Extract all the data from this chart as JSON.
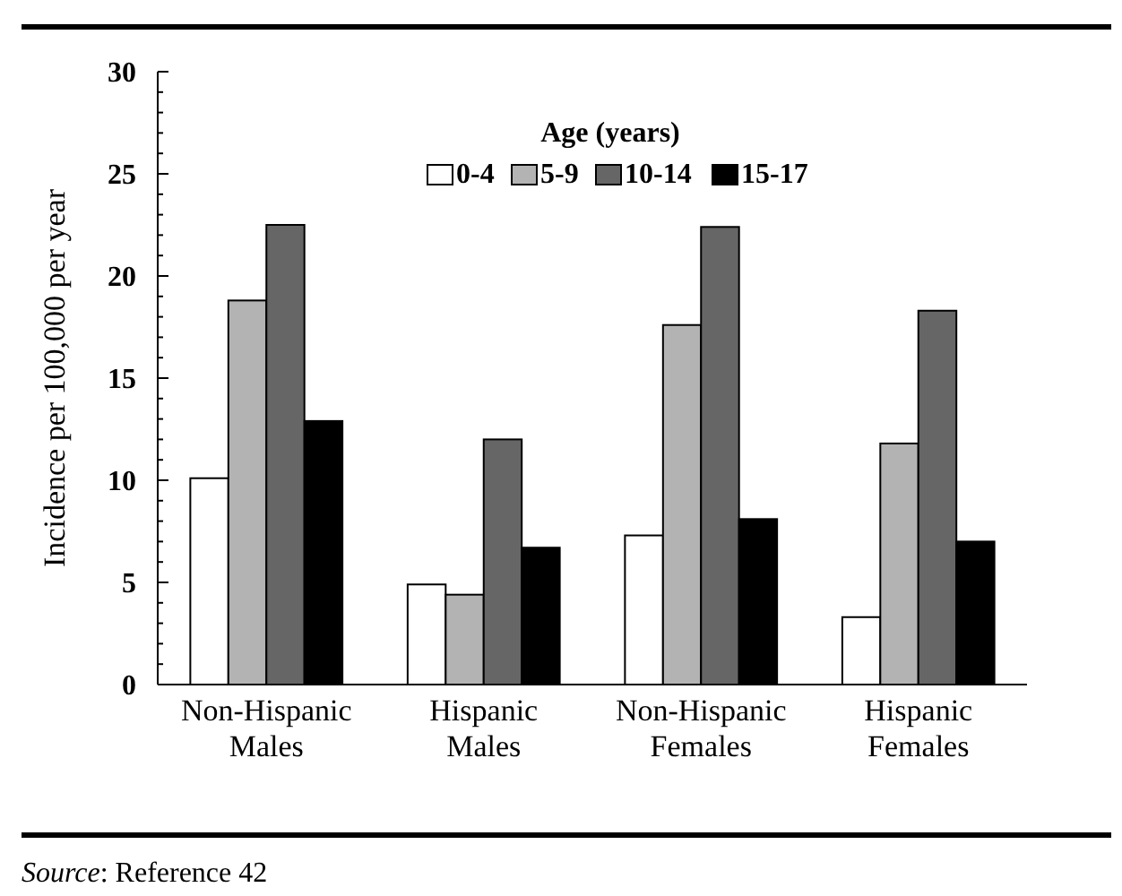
{
  "chart_data": {
    "type": "bar",
    "ylabel": "Incidence per 100,000 per year",
    "legend_title": "Age (years)",
    "legend": "top",
    "grid": false,
    "categories": [
      "Non-Hispanic Males",
      "Hispanic Males",
      "Non-Hispanic Females",
      "Hispanic Females"
    ],
    "series": [
      {
        "name": "0-4",
        "color": "#ffffff",
        "values": [
          10.1,
          4.9,
          7.3,
          3.3
        ]
      },
      {
        "name": "5-9",
        "color": "#b3b3b3",
        "values": [
          18.8,
          4.4,
          17.6,
          11.8
        ]
      },
      {
        "name": "10-14",
        "color": "#666666",
        "values": [
          22.5,
          12.0,
          22.4,
          18.3
        ]
      },
      {
        "name": "15-17",
        "color": "#000000",
        "values": [
          12.9,
          6.7,
          8.1,
          7.0
        ]
      }
    ],
    "ylim": [
      0,
      30
    ],
    "yticks": [
      0,
      {
        "value": 1,
        "label": null
      },
      {
        "value": 2,
        "label": null
      },
      {
        "value": 3,
        "label": null
      },
      {
        "value": 4,
        "label": null
      },
      5,
      {
        "value": 6,
        "label": null
      },
      {
        "value": 7,
        "label": null
      },
      {
        "value": 8,
        "label": null
      },
      {
        "value": 9,
        "label": null
      },
      10,
      {
        "value": 11,
        "label": null
      },
      {
        "value": 12,
        "label": null
      },
      {
        "value": 13,
        "label": null
      },
      {
        "value": 14,
        "label": null
      },
      15,
      {
        "value": 16,
        "label": null
      },
      {
        "value": 17,
        "label": null
      },
      {
        "value": 18,
        "label": null
      },
      {
        "value": 19,
        "label": null
      },
      20,
      {
        "value": 21,
        "label": null
      },
      {
        "value": 22,
        "label": null
      },
      {
        "value": 23,
        "label": null
      },
      {
        "value": 24,
        "label": null
      },
      25,
      {
        "value": 26,
        "label": null
      },
      {
        "value": 27,
        "label": null
      },
      {
        "value": 28,
        "label": null
      },
      {
        "value": 29,
        "label": null
      },
      30
    ],
    "annotations": [
      "Source: Reference 42"
    ]
  }
}
